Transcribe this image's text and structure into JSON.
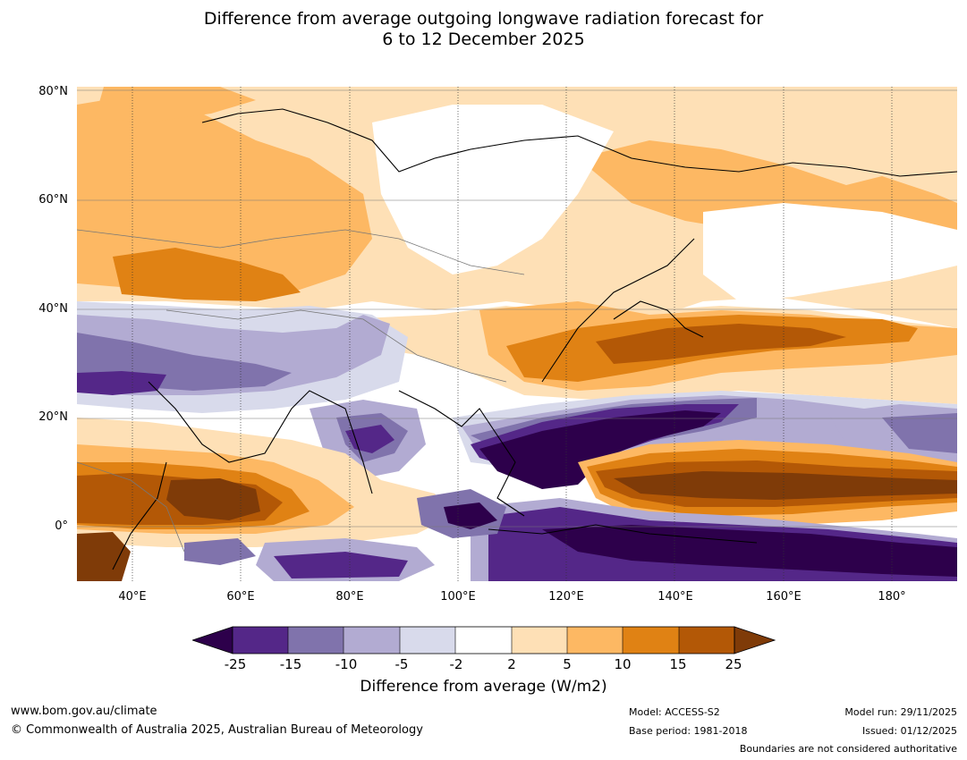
{
  "title": {
    "line1": "Difference from average outgoing longwave radiation forecast for",
    "line2": "6 to 12 December 2025"
  },
  "map": {
    "lat_labels": [
      "80°N",
      "60°N",
      "40°N",
      "20°N",
      "0°"
    ],
    "lon_labels": [
      "40°E",
      "60°E",
      "80°E",
      "100°E",
      "120°E",
      "140°E",
      "160°E",
      "180°"
    ],
    "colors": {
      "lt_minus25": "#2d004b",
      "m25_m15": "#542788",
      "m15_m10": "#8073ac",
      "m10_m5": "#b2abd2",
      "m5_m2": "#d8daeb",
      "m2_p2": "#ffffff",
      "p2_p5": "#fee0b6",
      "p5_p10": "#fdb863",
      "p10_p15": "#e08214",
      "p15_p25": "#b35806",
      "gt_p25": "#7f3b08"
    }
  },
  "colorbar": {
    "ticks": [
      "-25",
      "-15",
      "-10",
      "-5",
      "-2",
      "2",
      "5",
      "10",
      "15",
      "25"
    ],
    "title": "Difference from average (W/m2)"
  },
  "footer": {
    "website": "www.bom.gov.au/climate",
    "copyright": "© Commonwealth of Australia 2025, Australian Bureau of Meteorology",
    "model": "Model: ACCESS-S2",
    "base_period": "Base period: 1981-2018",
    "model_run": "Model run: 29/11/2025",
    "issued": "Issued: 01/12/2025",
    "disclaimer": "Boundaries are not considered authoritative"
  }
}
